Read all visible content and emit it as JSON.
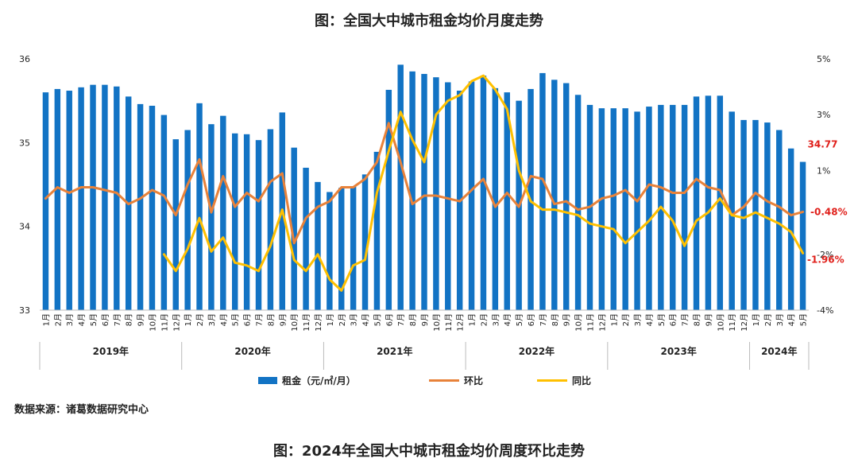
{
  "titles": {
    "main": "图：全国大中城市租金均价月度走势",
    "next": "图：2024年全国大中城市租金均价周度环比走势"
  },
  "source": "数据来源：诸葛数据研究中心",
  "chart_data": {
    "type": "bar+line",
    "title": "图：全国大中城市租金均价月度走势",
    "years": [
      {
        "label": "2019年",
        "months": 12
      },
      {
        "label": "2020年",
        "months": 12
      },
      {
        "label": "2021年",
        "months": 12
      },
      {
        "label": "2022年",
        "months": 12
      },
      {
        "label": "2023年",
        "months": 12
      },
      {
        "label": "2024年",
        "months": 5
      }
    ],
    "categories": [
      "1月",
      "2月",
      "3月",
      "4月",
      "5月",
      "6月",
      "7月",
      "8月",
      "9月",
      "10月",
      "11月",
      "12月",
      "1月",
      "2月",
      "3月",
      "4月",
      "5月",
      "6月",
      "7月",
      "8月",
      "9月",
      "10月",
      "11月",
      "12月",
      "1月",
      "2月",
      "3月",
      "4月",
      "5月",
      "6月",
      "7月",
      "8月",
      "9月",
      "10月",
      "11月",
      "12月",
      "1月",
      "2月",
      "3月",
      "4月",
      "5月",
      "6月",
      "7月",
      "8月",
      "9月",
      "10月",
      "11月",
      "12月",
      "1月",
      "2月",
      "3月",
      "4月",
      "5月",
      "6月",
      "7月",
      "8月",
      "9月",
      "10月",
      "11月",
      "12月",
      "1月",
      "2月",
      "3月",
      "4月",
      "5月"
    ],
    "left_axis": {
      "min": 33,
      "max": 36,
      "ticks": [
        "33",
        "34",
        "35",
        "36"
      ]
    },
    "right_axis": {
      "min": -4,
      "max": 5,
      "ticks": [
        "-4%",
        "-2%",
        "1%",
        "3%",
        "5%"
      ]
    },
    "series": [
      {
        "name": "租金（元/㎡/月）",
        "type": "bar",
        "axis": "left",
        "color": "#1273c4",
        "values": [
          35.6,
          35.64,
          35.62,
          35.66,
          35.69,
          35.69,
          35.67,
          35.55,
          35.46,
          35.44,
          35.33,
          35.04,
          35.15,
          35.47,
          35.22,
          35.32,
          35.11,
          35.1,
          35.03,
          35.16,
          35.36,
          34.94,
          34.7,
          34.53,
          34.41,
          34.46,
          34.48,
          34.62,
          34.89,
          35.63,
          35.93,
          35.85,
          35.82,
          35.78,
          35.72,
          35.62,
          35.73,
          35.8,
          35.65,
          35.6,
          35.5,
          35.64,
          35.83,
          35.75,
          35.71,
          35.57,
          35.45,
          35.41,
          35.41,
          35.41,
          35.37,
          35.43,
          35.45,
          35.45,
          35.45,
          35.55,
          35.56,
          35.56,
          35.37,
          35.27,
          35.27,
          35.24,
          35.15,
          34.93,
          34.77
        ]
      },
      {
        "name": "环比",
        "type": "line",
        "axis": "right",
        "color": "#e8823a",
        "values": [
          0.0,
          0.4,
          0.2,
          0.4,
          0.4,
          0.3,
          0.2,
          -0.2,
          0.0,
          0.3,
          0.1,
          -0.6,
          0.5,
          1.4,
          -0.5,
          0.8,
          -0.3,
          0.2,
          -0.1,
          0.6,
          0.9,
          -1.6,
          -0.7,
          -0.3,
          -0.1,
          0.4,
          0.4,
          0.7,
          1.3,
          2.7,
          1.3,
          -0.2,
          0.1,
          0.1,
          0.0,
          -0.1,
          0.3,
          0.7,
          -0.3,
          0.2,
          -0.3,
          0.8,
          0.7,
          -0.2,
          -0.1,
          -0.4,
          -0.3,
          0.0,
          0.1,
          0.3,
          -0.1,
          0.5,
          0.4,
          0.2,
          0.2,
          0.7,
          0.4,
          0.3,
          -0.6,
          -0.3,
          0.2,
          -0.1,
          -0.3,
          -0.6,
          -0.48
        ]
      },
      {
        "name": "同比",
        "type": "line",
        "axis": "right",
        "color": "#ffc000",
        "values": [
          null,
          null,
          null,
          null,
          null,
          null,
          null,
          null,
          null,
          null,
          -2.0,
          -2.6,
          -1.8,
          -0.7,
          -1.9,
          -1.4,
          -2.3,
          -2.4,
          -2.6,
          -1.7,
          -0.4,
          -2.2,
          -2.6,
          -2.0,
          -2.9,
          -3.3,
          -2.4,
          -2.2,
          0.2,
          1.7,
          3.1,
          2.1,
          1.3,
          3.0,
          3.5,
          3.7,
          4.2,
          4.4,
          3.9,
          3.2,
          1.0,
          -0.1,
          -0.4,
          -0.4,
          -0.5,
          -0.6,
          -0.9,
          -1.0,
          -1.1,
          -1.6,
          -1.2,
          -0.8,
          -0.3,
          -0.8,
          -1.7,
          -0.8,
          -0.5,
          0.0,
          -0.6,
          -0.7,
          -0.5,
          -0.7,
          -0.9,
          -1.2,
          -1.96
        ]
      }
    ],
    "end_labels": {
      "bar": "34.77",
      "mom": "-0.48%",
      "yoy": "-1.96%"
    }
  },
  "legend": {
    "bar": "租金（元/㎡/月）",
    "mom": "环比",
    "yoy": "同比"
  }
}
